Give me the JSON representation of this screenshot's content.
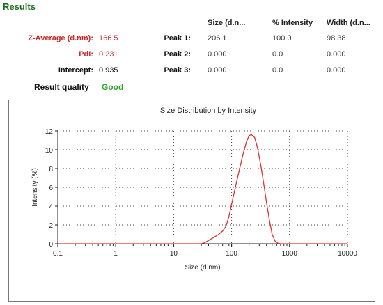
{
  "results": {
    "title": "Results",
    "headers": [
      "Size (d.n...",
      "% Intensity",
      "Width (d.n..."
    ],
    "summary": [
      {
        "label": "Z-Average (d.nm):",
        "value": "166.5"
      },
      {
        "label": "PdI:",
        "value": "0.231"
      },
      {
        "label": "Intercept:",
        "value": "0.935"
      }
    ],
    "peaks": [
      {
        "label": "Peak 1:",
        "size": "206.1",
        "intensity": "100.0",
        "width": "98.38"
      },
      {
        "label": "Peak 2:",
        "size": "0.000",
        "intensity": "0.0",
        "width": "0.000"
      },
      {
        "label": "Peak 3:",
        "size": "0.000",
        "intensity": "0.0",
        "width": "0.000"
      }
    ],
    "quality_label": "Result quality",
    "quality_value": "Good"
  },
  "colors": {
    "title": "#1d6e1d",
    "label_red": "#cc2b2b",
    "good": "#2aa52a",
    "curve": "#e03030"
  },
  "chart_data": {
    "type": "line",
    "title": "Size Distribution by Intensity",
    "xlabel": "Size (d.nm)",
    "ylabel": "Intensity (%)",
    "xscale": "log",
    "xlim": [
      0.1,
      10000
    ],
    "ylim": [
      0,
      12
    ],
    "xticks": [
      "0.1",
      "1",
      "10",
      "100",
      "1000",
      "10000"
    ],
    "yticks": [
      "0",
      "2",
      "4",
      "6",
      "8",
      "10",
      "12"
    ],
    "grid": true,
    "series": [
      {
        "x": [
          0.1,
          30,
          34,
          40,
          50,
          60,
          70,
          80,
          90,
          100,
          120,
          140,
          160,
          180,
          200,
          220,
          250,
          280,
          320,
          360,
          400,
          450,
          500,
          560,
          630,
          700,
          1000,
          10000
        ],
        "values": [
          0,
          0,
          0.1,
          0.35,
          0.7,
          1.0,
          1.35,
          1.85,
          2.9,
          4.2,
          6.4,
          8.2,
          9.7,
          10.8,
          11.5,
          11.6,
          11.3,
          10.2,
          8.3,
          6.3,
          4.4,
          2.5,
          1.0,
          0.3,
          0.05,
          0,
          0,
          0
        ]
      }
    ]
  }
}
